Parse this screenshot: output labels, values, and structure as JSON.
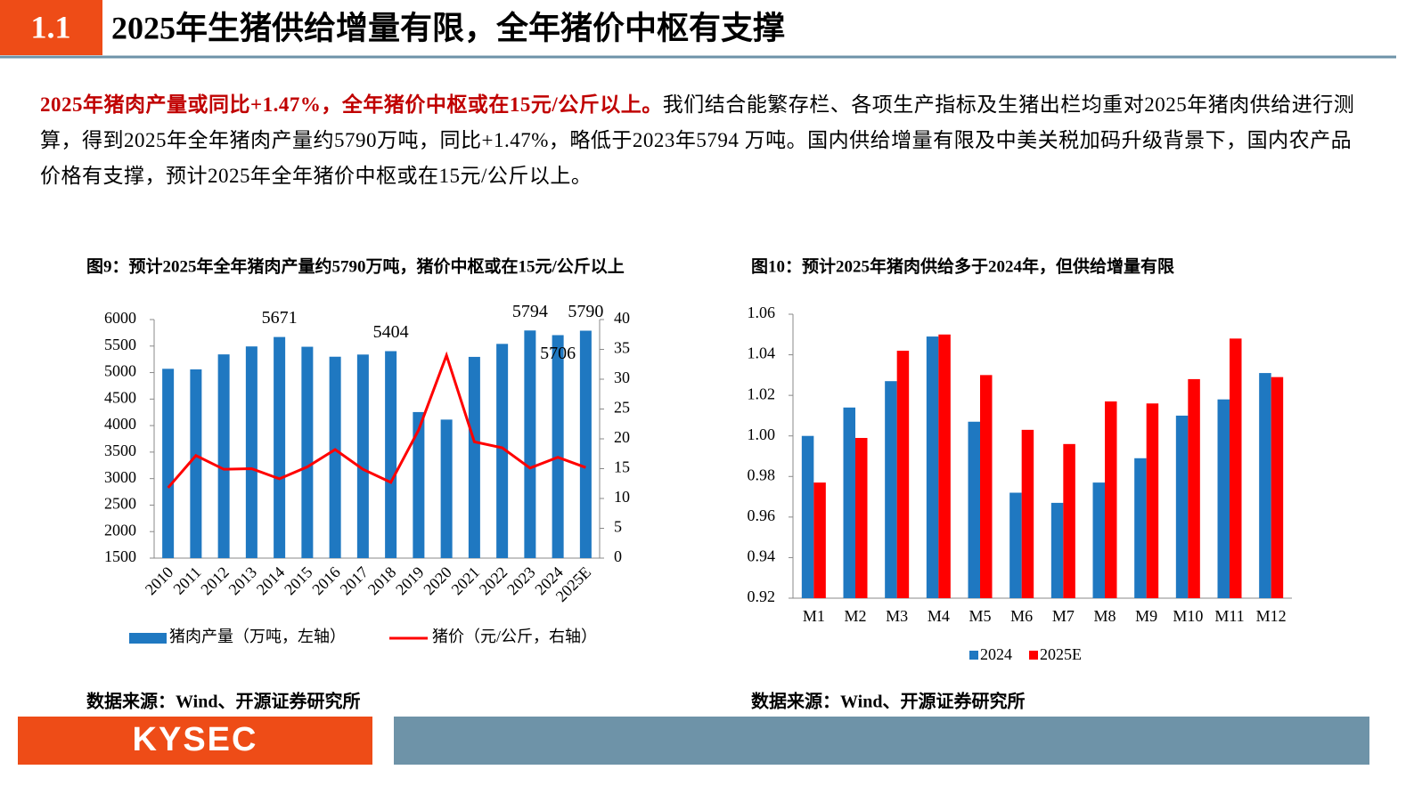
{
  "header": {
    "section": "1.1",
    "title": "2025年生猪供给增量有限，全年猪价中枢有支撑"
  },
  "summary": {
    "highlight": "2025年猪肉产量或同比+1.47%，全年猪价中枢或在15元/公斤以上。",
    "body": "我们结合能繁存栏、各项生产指标及生猪出栏均重对2025年猪肉供给进行测算，得到2025年全年猪肉产量约5790万吨，同比+1.47%，略低于2023年5794 万吨。国内供给增量有限及中美关税加码升级背景下，国内农产品价格有支撑，预计2025年全年猪价中枢或在15元/公斤以上。"
  },
  "chart_data": [
    {
      "type": "bar",
      "title": "图9：预计2025年全年猪肉产量约5790万吨，猪价中枢或在15元/公斤以上",
      "categories": [
        "2010",
        "2011",
        "2012",
        "2013",
        "2014",
        "2015",
        "2016",
        "2017",
        "2018",
        "2019",
        "2020",
        "2021",
        "2022",
        "2023",
        "2024",
        "2025E"
      ],
      "series": [
        {
          "name": "猪肉产量（万吨，左轴）",
          "color": "#1f78c1",
          "values": [
            5071,
            5060,
            5343,
            5493,
            5671,
            5487,
            5299,
            5340,
            5404,
            4255,
            4113,
            5296,
            5541,
            5794,
            5706,
            5790
          ],
          "value_labels": [
            null,
            null,
            null,
            null,
            "5671",
            null,
            null,
            null,
            "5404",
            null,
            null,
            null,
            null,
            "5794",
            "5706",
            "5790"
          ]
        },
        {
          "name": "猪价（元/公斤，右轴）",
          "color": "#ff0000",
          "type": "line",
          "axis": "y2",
          "values": [
            11.8,
            17.2,
            14.9,
            15.0,
            13.3,
            15.3,
            18.2,
            14.9,
            12.7,
            21.5,
            34.0,
            19.5,
            18.5,
            15.1,
            16.9,
            15.2
          ]
        }
      ],
      "ylim": [
        1500,
        6000
      ],
      "yticks": [
        1500,
        2000,
        2500,
        3000,
        3500,
        4000,
        4500,
        5000,
        5500,
        6000
      ],
      "y2lim": [
        0,
        40
      ],
      "y2ticks": [
        0,
        5,
        10,
        15,
        20,
        25,
        30,
        35,
        40
      ],
      "legend": "bottom"
    },
    {
      "type": "bar",
      "title": "图10：预计2025年猪肉供给多于2024年，但供给增量有限",
      "categories": [
        "M1",
        "M2",
        "M3",
        "M4",
        "M5",
        "M6",
        "M7",
        "M8",
        "M9",
        "M10",
        "M11",
        "M12"
      ],
      "series": [
        {
          "name": "2024",
          "color": "#1f78c1",
          "values": [
            1.0,
            1.014,
            1.027,
            1.049,
            1.007,
            0.972,
            0.967,
            0.977,
            0.989,
            1.01,
            1.018,
            1.031
          ]
        },
        {
          "name": "2025E",
          "color": "#ff0000",
          "values": [
            0.977,
            0.999,
            1.042,
            1.05,
            1.03,
            1.003,
            0.996,
            1.017,
            1.016,
            1.028,
            1.048,
            1.029
          ]
        }
      ],
      "ylim": [
        0.92,
        1.06
      ],
      "yticks": [
        0.92,
        0.94,
        0.96,
        0.98,
        {
          "value": 1,
          "label": "1.00"
        },
        1.02,
        1.04,
        1.06
      ],
      "legend": "bottom"
    }
  ],
  "sources": [
    "数据来源：Wind、开源证券研究所",
    "数据来源：Wind、开源证券研究所"
  ],
  "footer": {
    "logo": "KYSEC"
  }
}
